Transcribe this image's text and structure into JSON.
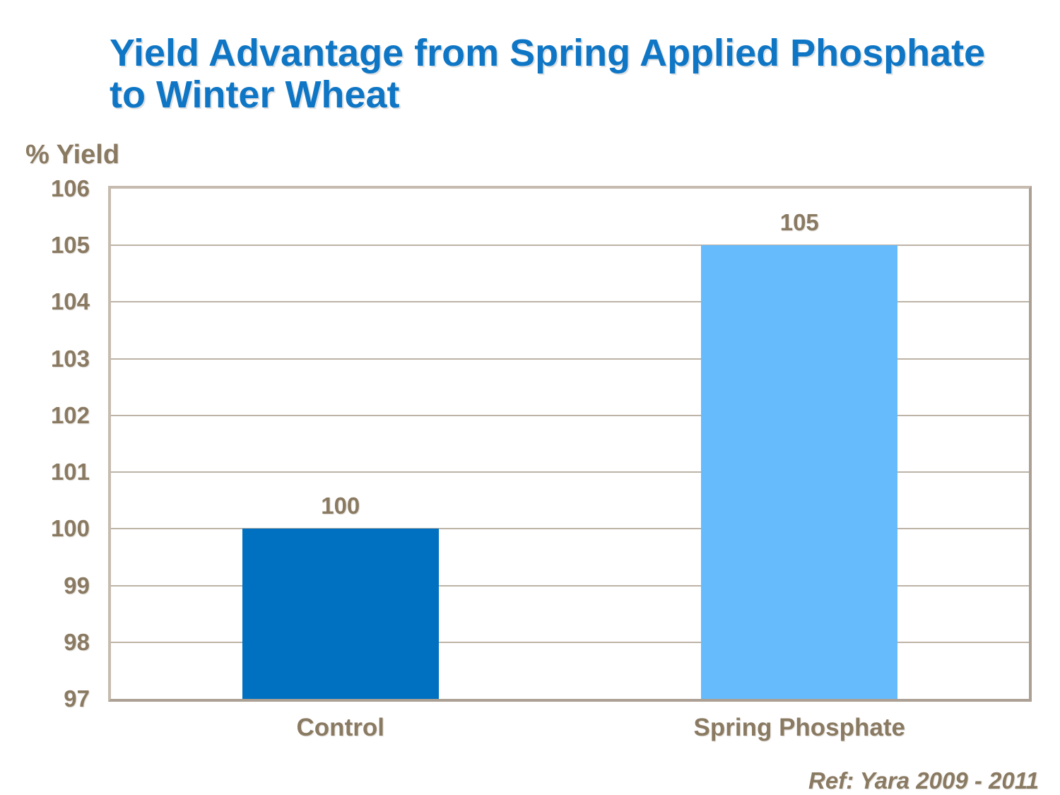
{
  "slide": {
    "title_line1": "Yield Advantage from Spring Applied Phosphate",
    "title_line2": "to Winter Wheat",
    "reference": "Ref: Yara 2009 - 2011"
  },
  "chart_data": {
    "type": "bar",
    "title": "Yield Advantage from Spring Applied Phosphate to Winter Wheat",
    "categories": [
      "Control",
      "Spring Phosphate"
    ],
    "values": [
      100,
      105
    ],
    "data_labels": [
      "100",
      "105"
    ],
    "xlabel": "",
    "ylabel": "% Yield",
    "ylim": [
      97,
      106
    ],
    "yticks": [
      97,
      98,
      99,
      100,
      101,
      102,
      103,
      104,
      105,
      106
    ],
    "grid": true,
    "legend": false,
    "bar_colors": [
      "#0070C0",
      "#66BBFC"
    ],
    "annotation": "Ref: Yara 2009 - 2011"
  },
  "colors": {
    "title_text": "#0E76C5",
    "axis_text": "#8A7A62",
    "plot_border": "#B9AEA1",
    "gridline": "#BDB3A6",
    "background": "#FFFFFF"
  }
}
